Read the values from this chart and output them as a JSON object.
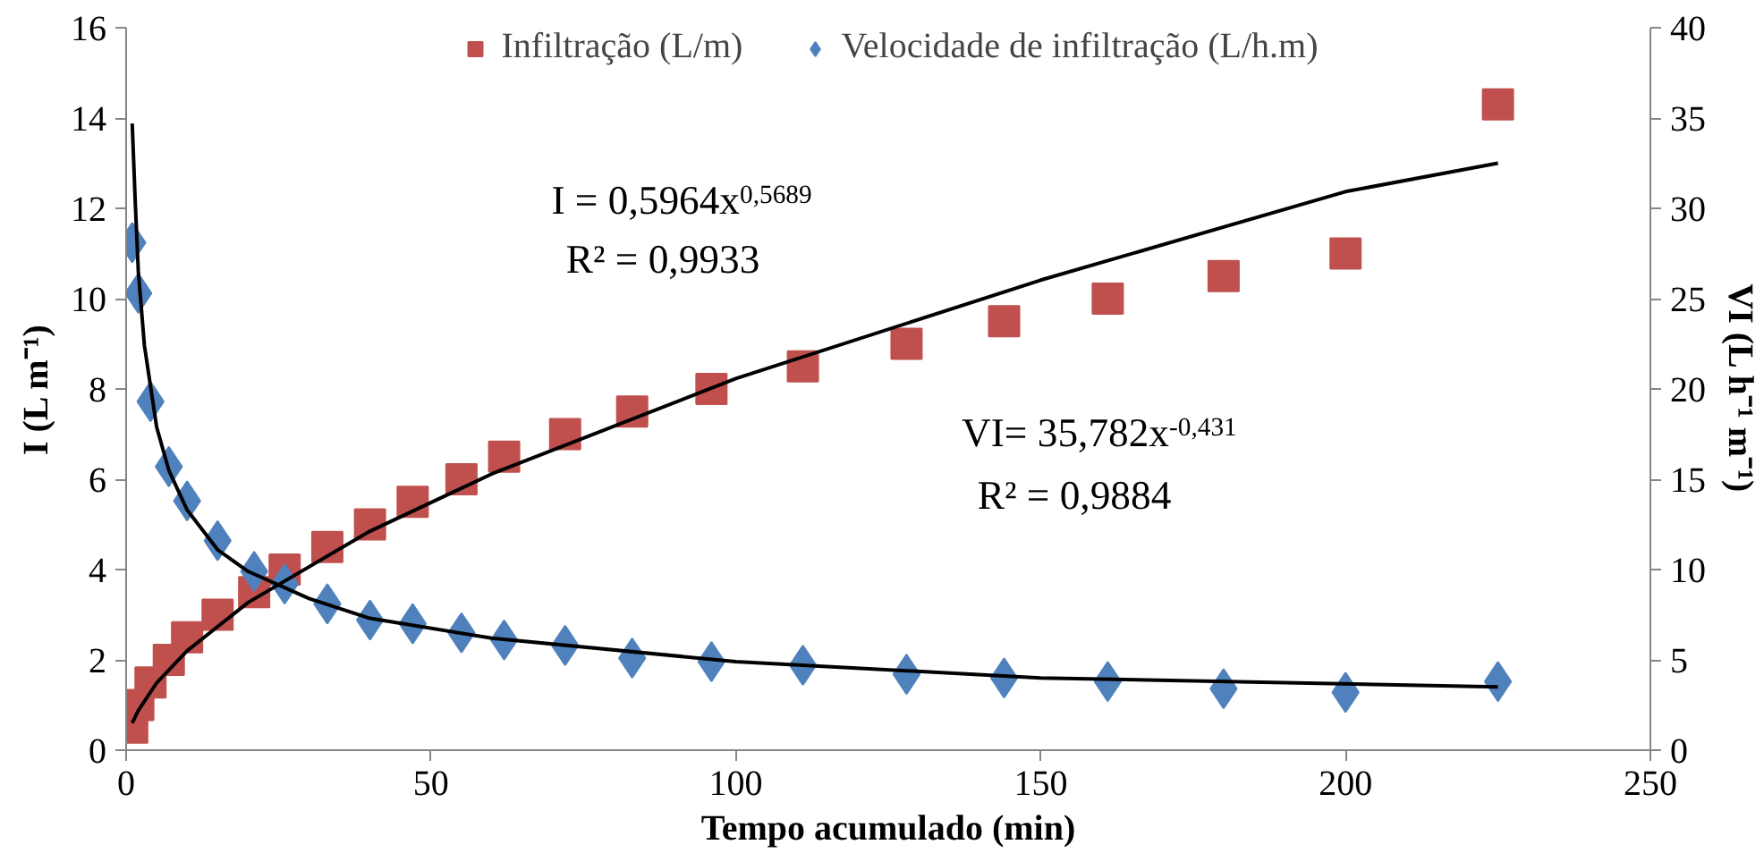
{
  "chart_data": {
    "type": "scatter",
    "xlabel": "Tempo acumulado (min)",
    "ylabel": "I (L m⁻¹)",
    "y2label": "VI (L h⁻¹ m⁻¹)",
    "xlim": [
      0,
      250
    ],
    "xticks": [
      0,
      50,
      100,
      150,
      200,
      250
    ],
    "ylim": [
      0,
      16
    ],
    "yticks": [
      0,
      2,
      4,
      6,
      8,
      10,
      12,
      14,
      16
    ],
    "y2lim": [
      0,
      40
    ],
    "y2ticks": [
      0,
      5,
      10,
      15,
      20,
      25,
      30,
      35,
      40
    ],
    "grid": false,
    "legend": "top",
    "annotations": [
      "I = 0,5964x$^{0,5689}$",
      "R² = 0,9933",
      "VI= 35,782x$^{-0,431}$",
      "R² = 0,9884"
    ],
    "series": [
      {
        "name": "Infiltração (L/m)",
        "marker": "square",
        "color": "#c0504d",
        "x": [
          1,
          2,
          4,
          7,
          10,
          15,
          21,
          26,
          33,
          40,
          47,
          55,
          62,
          72,
          83,
          96,
          111,
          128,
          144,
          161,
          180,
          200,
          225
        ],
        "values": [
          0.5,
          1,
          1.5,
          2,
          2.5,
          3,
          3.5,
          4,
          4.5,
          5,
          5.5,
          6,
          6.5,
          7,
          7.5,
          8,
          8.5,
          9,
          9.5,
          10,
          10.5,
          11,
          14.3
        ]
      },
      {
        "name": "Velocidade de infiltração (L/h.m)",
        "marker": "diamond",
        "axis": "y2",
        "color": "#4f81bd",
        "x": [
          1,
          2,
          4,
          7,
          10,
          15,
          21,
          26,
          33,
          40,
          47,
          55,
          62,
          72,
          83,
          96,
          111,
          128,
          144,
          161,
          180,
          200,
          225
        ],
        "values": [
          28.1,
          25.3,
          19.3,
          15.7,
          13.8,
          11.6,
          9.9,
          9.2,
          8.1,
          7.2,
          7.0,
          6.5,
          6.1,
          5.8,
          5.1,
          4.9,
          4.7,
          4.2,
          4.0,
          3.8,
          3.4,
          3.2,
          3.8
        ]
      },
      {
        "type": "line",
        "color": "#000000",
        "line_style": "solid",
        "marker": "none",
        "x": [
          1,
          2,
          5,
          10,
          20,
          40,
          60,
          100,
          150,
          200,
          225
        ],
        "values": [
          0.6,
          0.88,
          1.49,
          2.2,
          3.27,
          4.85,
          6.12,
          8.23,
          10.41,
          12.37,
          13.0
        ]
      },
      {
        "type": "line",
        "axis": "y2",
        "color": "#000000",
        "line_style": "solid",
        "marker": "none",
        "x": [
          1,
          1.5,
          2,
          3,
          5,
          7,
          10,
          15,
          20,
          30,
          40,
          60,
          100,
          150,
          225
        ],
        "values": [
          34.7,
          30.3,
          26.5,
          22.4,
          17.9,
          15.5,
          13.3,
          11.1,
          9.9,
          8.4,
          7.3,
          6.2,
          4.9,
          4.0,
          3.5
        ]
      }
    ]
  }
}
